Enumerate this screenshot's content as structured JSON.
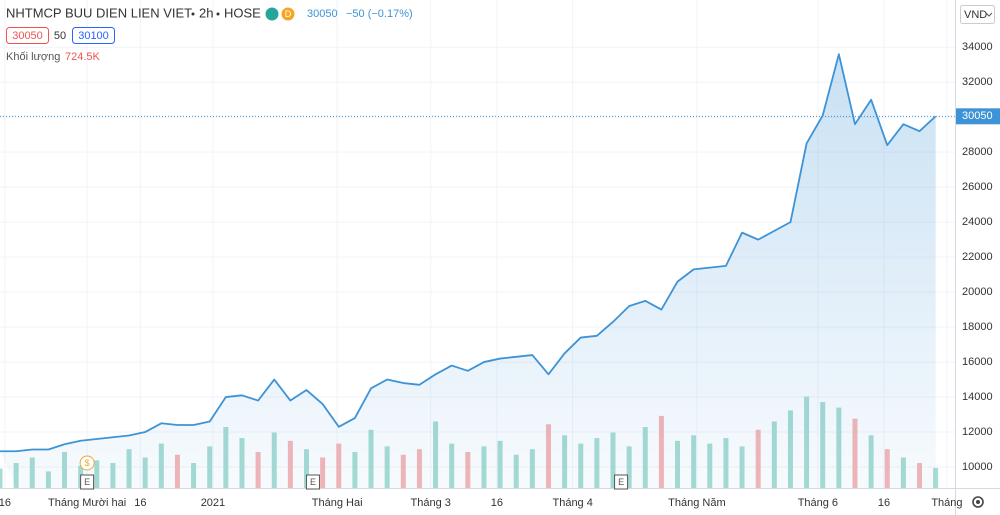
{
  "chart_data": {
    "type": "area",
    "title": "NHTMCP BUU DIEN LIEN VIET",
    "interval": "2h",
    "exchange": "HOSE",
    "badge": "D",
    "quote": {
      "last": 30050,
      "change": {
        "value": -50,
        "label": "−50 (−0.17%)"
      }
    },
    "bid": "30050",
    "spread": "50",
    "ask": "30100",
    "currency": "VND",
    "last_volume": {
      "value": 724500,
      "label": "724.5K"
    },
    "x": [
      0,
      1,
      2,
      3,
      4,
      5,
      6,
      7,
      8,
      9,
      10,
      11,
      12,
      13,
      14,
      15,
      16,
      17,
      18,
      19,
      20,
      21,
      22,
      23,
      24,
      25,
      26,
      27,
      28,
      29,
      30,
      31,
      32,
      33,
      34,
      35,
      36,
      37,
      38,
      39,
      40,
      41,
      42,
      43,
      44,
      45,
      46,
      47,
      48,
      49,
      50,
      51,
      52,
      53,
      54,
      55,
      56,
      57,
      58
    ],
    "series": [
      {
        "name": "NHTMCP BUU DIEN LIEN VIET",
        "color": "#3d93d6",
        "values": [
          10900,
          10900,
          11000,
          11000,
          11300,
          11500,
          11600,
          11700,
          11800,
          12000,
          12500,
          12400,
          12400,
          12600,
          14000,
          14100,
          13800,
          15000,
          13800,
          14400,
          13600,
          12300,
          12800,
          14500,
          15000,
          14800,
          14700,
          15300,
          15800,
          15500,
          16000,
          16200,
          16300,
          16400,
          15300,
          16500,
          17400,
          17500,
          18300,
          19200,
          19500,
          19000,
          20600,
          21300,
          21400,
          21500,
          23400,
          23000,
          23500,
          24000,
          28500,
          30100,
          33600,
          29600,
          31000,
          28400,
          29600,
          29200,
          30050
        ]
      },
      {
        "name": "Khối lượng",
        "axis": "y2",
        "up_color": "#a7dcd3",
        "down_color": "#f6b6b6",
        "values": [
          700000,
          900000,
          1100000,
          600000,
          1300000,
          800000,
          1000000,
          900000,
          1400000,
          1100000,
          1600000,
          1200000,
          900000,
          1500000,
          2200000,
          1800000,
          1300000,
          2000000,
          1700000,
          1400000,
          1100000,
          1600000,
          1300000,
          2100000,
          1500000,
          1200000,
          1400000,
          2400000,
          1600000,
          1300000,
          1500000,
          1700000,
          1200000,
          1400000,
          2300000,
          1900000,
          1600000,
          1800000,
          2000000,
          1500000,
          2200000,
          2600000,
          1700000,
          1900000,
          1600000,
          1800000,
          1500000,
          2100000,
          2400000,
          2800000,
          3300000,
          3100000,
          2900000,
          2500000,
          1900000,
          1400000,
          1100000,
          900000,
          724500
        ]
      }
    ],
    "xlim": [
      0,
      59.2
    ],
    "xticks": [
      {
        "value": 0.3,
        "label": "16"
      },
      {
        "value": 5.4,
        "label": "Tháng Mười hai"
      },
      {
        "value": 8.7,
        "label": "16"
      },
      {
        "value": 13.2,
        "label": "2021"
      },
      {
        "value": 20.9,
        "label": "Tháng Hai"
      },
      {
        "value": 26.7,
        "label": "Tháng 3"
      },
      {
        "value": 30.8,
        "label": "16"
      },
      {
        "value": 35.5,
        "label": "Tháng 4"
      },
      {
        "value": 43.2,
        "label": "Tháng Năm"
      },
      {
        "value": 50.7,
        "label": "Tháng 6"
      },
      {
        "value": 54.8,
        "label": "16"
      },
      {
        "value": 58.7,
        "label": "Tháng"
      }
    ],
    "ylim": [
      8800,
      36700
    ],
    "yticks": [
      10000,
      12000,
      14000,
      16000,
      18000,
      20000,
      22000,
      24000,
      26000,
      28000,
      30000,
      32000,
      34000
    ],
    "y2lim": [
      0,
      17600000
    ],
    "grid": true,
    "events": [
      {
        "label": "$",
        "x": 5.4,
        "color": "#e8a93a",
        "row": 2
      },
      {
        "label": "E",
        "x": 5.4,
        "color": "#555",
        "row": 1
      },
      {
        "label": "E",
        "x": 19.4,
        "color": "#555",
        "row": 1
      },
      {
        "label": "E",
        "x": 38.5,
        "color": "#555",
        "row": 1
      }
    ]
  }
}
